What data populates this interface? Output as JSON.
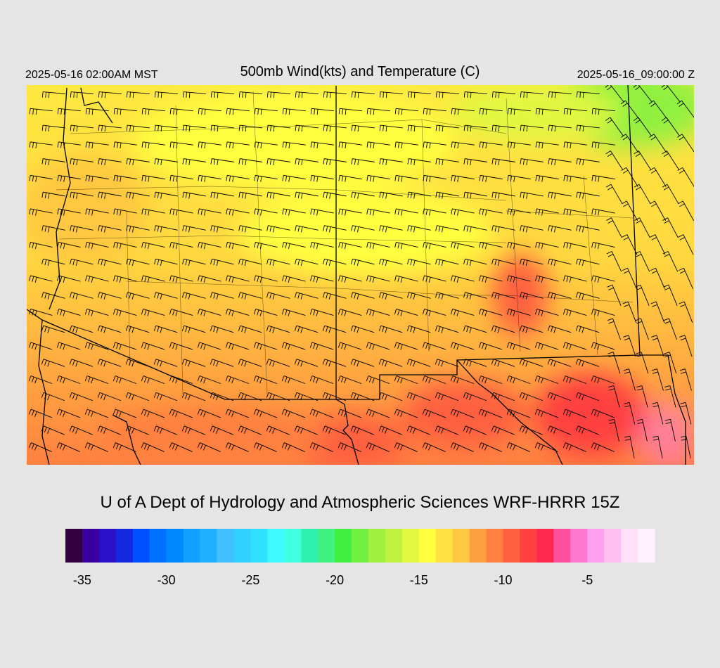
{
  "header": {
    "left_label": "2025-05-16 02:00AM MST",
    "title": "500mb Wind(kts) and Temperature (C)",
    "right_label": "2025-05-16_09:00:00 Z"
  },
  "credit": "U of A Dept of Hydrology and Atmospheric Sciences WRF-HRRR 15Z",
  "colorbar": {
    "range": [
      -36,
      -1
    ],
    "ticks": [
      -35,
      -30,
      -25,
      -20,
      -15,
      -10,
      -5
    ],
    "colors": [
      "#330040",
      "#3a00a0",
      "#2a10c8",
      "#1428e0",
      "#0050ff",
      "#0070ff",
      "#0088ff",
      "#10a0ff",
      "#20b0ff",
      "#40c0ff",
      "#30d0ff",
      "#30e0ff",
      "#40f8ff",
      "#40ffe0",
      "#30f0b0",
      "#40f080",
      "#40f040",
      "#70f040",
      "#a0f040",
      "#c0f040",
      "#e0f840",
      "#ffff40",
      "#ffe040",
      "#ffc840",
      "#ffa040",
      "#ff8040",
      "#ff6040",
      "#ff4040",
      "#ff2850",
      "#ff50a0",
      "#ff78d0",
      "#ffa0f0",
      "#ffc0f0",
      "#ffe0f8",
      "#fff0ff"
    ]
  }
}
